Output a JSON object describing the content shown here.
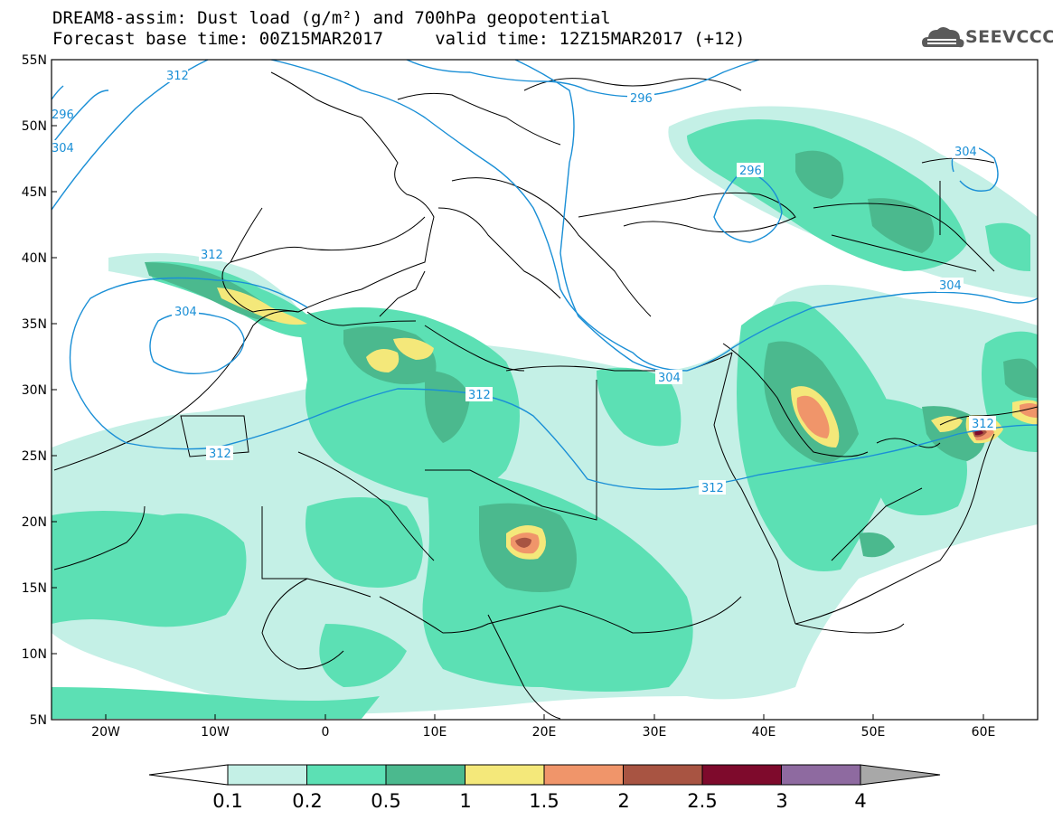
{
  "header": {
    "title_line1": "DREAM8-assim: Dust load (g/m²) and 700hPa geopotential",
    "title_line2": "Forecast base time: 00Z15MAR2017     valid time: 12Z15MAR2017 (+12)"
  },
  "logo": {
    "text": "SEEVCCC"
  },
  "map": {
    "lat_labels": [
      "55N",
      "50N",
      "45N",
      "40N",
      "35N",
      "30N",
      "25N",
      "20N",
      "15N",
      "10N",
      "5N"
    ],
    "lon_labels": [
      "20W",
      "10W",
      "0",
      "10E",
      "20E",
      "30E",
      "40E",
      "50E",
      "60E"
    ],
    "contour_labels": [
      "312",
      "312",
      "312",
      "312",
      "312",
      "304",
      "304",
      "304",
      "304",
      "304",
      "296",
      "296",
      "296",
      "312"
    ]
  },
  "colorbar": {
    "labels": [
      "0.1",
      "0.2",
      "0.5",
      "1",
      "1.5",
      "2",
      "2.5",
      "3",
      "4"
    ],
    "colors": [
      "#c4f0e6",
      "#5ce0b4",
      "#4bb98e",
      "#f4e87a",
      "#f0956a",
      "#a85442",
      "#7e0a2c",
      "#8e6aa0"
    ]
  },
  "dust_colors": {
    "light": "#c4f0e6",
    "mid": "#5ce0b4",
    "dark": "#4bb98e",
    "yellow": "#f4e87a",
    "orange": "#f0956a",
    "brown": "#a85442",
    "maroon": "#7e0a2c"
  },
  "contour_color": "#1a8fd6"
}
